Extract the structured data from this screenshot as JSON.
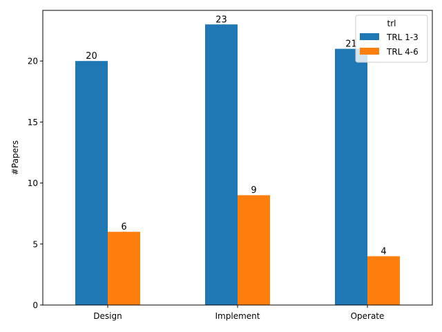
{
  "chart_data": {
    "type": "bar",
    "title": "",
    "xlabel": "",
    "ylabel": "#Papers",
    "categories": [
      "Design",
      "Implement",
      "Operate"
    ],
    "series": [
      {
        "name": "TRL 1-3",
        "values": [
          20,
          23,
          21
        ],
        "color": "#1f77b4"
      },
      {
        "name": "TRL 4-6",
        "values": [
          6,
          9,
          4
        ],
        "color": "#ff7f0e"
      }
    ],
    "ylim": [
      0,
      24.15
    ],
    "yticks": [
      0,
      5,
      10,
      15,
      20
    ],
    "grid": false,
    "legend": {
      "title": "trl",
      "position": "top-right"
    }
  }
}
